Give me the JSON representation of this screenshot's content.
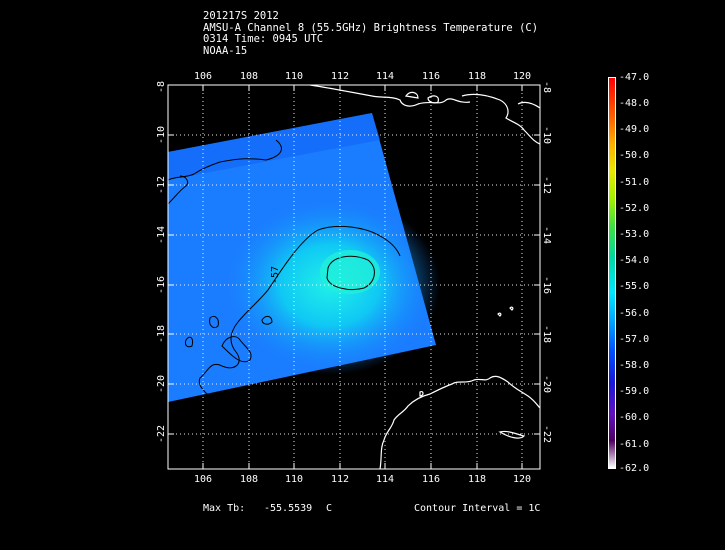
{
  "header": {
    "line1": "201217S 2012",
    "line2": "AMSU-A Channel 8 (55.5GHz) Brightness Temperature (C)",
    "line3": "0314 Time: 0945 UTC",
    "line4": "NOAA-15"
  },
  "map": {
    "lon_ticks": [
      "106",
      "108",
      "110",
      "112",
      "114",
      "116",
      "118",
      "120"
    ],
    "lat_ticks": [
      "-8",
      "-10",
      "-12",
      "-14",
      "-16",
      "-18",
      "-20",
      "-22"
    ],
    "lon_range": [
      104.3,
      120.6
    ],
    "lat_range": [
      -23.1,
      -7.9
    ],
    "contour_label": "-57",
    "swath_color": "#1a7cff",
    "core_color": "#18e0f0",
    "coast_color": "#ffffff",
    "grid": "dotted white"
  },
  "footer": {
    "max_tb_label": "Max Tb:",
    "max_tb_value": "-55.5539",
    "max_tb_unit": "C",
    "contour_interval": "Contour Interval = 1C"
  },
  "colorbar": {
    "labels": [
      "-47.0",
      "-48.0",
      "-49.0",
      "-50.0",
      "-51.0",
      "-52.0",
      "-53.0",
      "-54.0",
      "-55.0",
      "-56.0",
      "-57.0",
      "-58.0",
      "-59.0",
      "-60.0",
      "-61.0",
      "-62.0"
    ]
  }
}
